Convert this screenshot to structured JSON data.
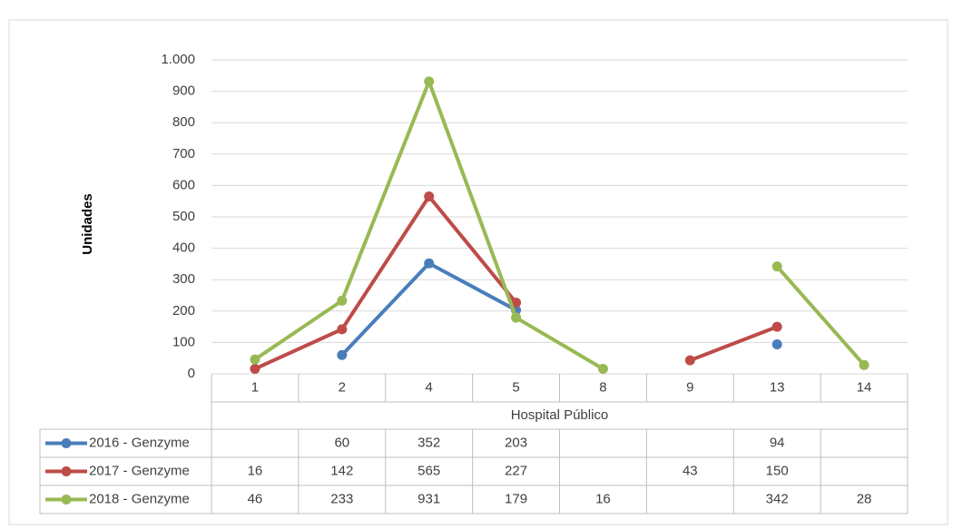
{
  "chart_data": {
    "type": "line",
    "y_label": "Unidades",
    "x_label": "Hospital Público",
    "categories": [
      "1",
      "2",
      "4",
      "5",
      "8",
      "9",
      "13",
      "14"
    ],
    "series": [
      {
        "name": "2016 - Genzyme",
        "color": "#4a7ebb",
        "values": [
          null,
          60,
          352,
          203,
          null,
          null,
          94,
          null
        ]
      },
      {
        "name": "2017 - Genzyme",
        "color": "#be4b48",
        "values": [
          16,
          142,
          565,
          227,
          null,
          43,
          150,
          null
        ]
      },
      {
        "name": "2018 - Genzyme",
        "color": "#98b954",
        "values": [
          46,
          233,
          931,
          179,
          16,
          null,
          342,
          28
        ]
      }
    ],
    "ylim": [
      0,
      1000
    ],
    "yticks": [
      0,
      100,
      200,
      300,
      400,
      500,
      600,
      700,
      800,
      900,
      {
        "value": 1000,
        "label": "1.000"
      }
    ],
    "grid": true,
    "data_table": true
  }
}
